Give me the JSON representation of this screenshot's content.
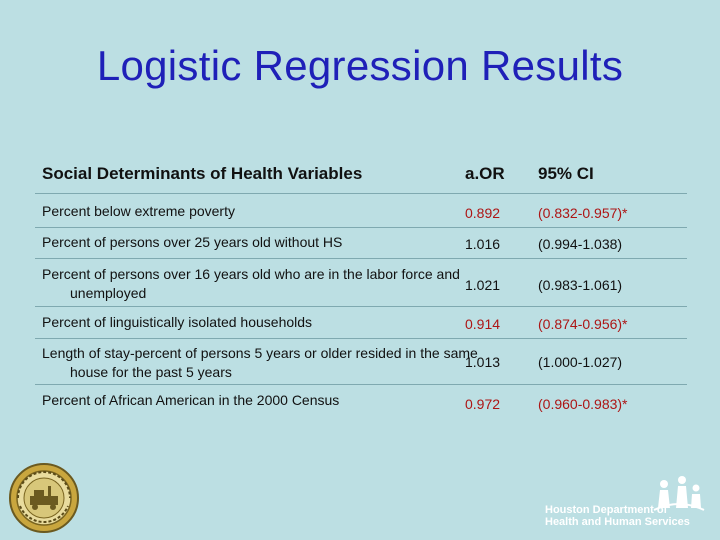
{
  "title": "Logistic Regression Results",
  "table": {
    "headers": {
      "variable": "Social Determinants of Health Variables",
      "aor": "a.OR",
      "ci": "95% CI"
    },
    "rows": [
      {
        "variable": "Percent below extreme poverty",
        "aor": "0.892",
        "ci": "(0.832-0.957)*",
        "significant": true
      },
      {
        "variable": "Percent of persons over 25 years old without HS",
        "aor": "1.016",
        "ci": "(0.994-1.038)",
        "significant": false
      },
      {
        "variable": "Percent of persons over 16 years old who are in the labor force and unemployed",
        "aor": "1.021",
        "ci": "(0.983-1.061)",
        "significant": false
      },
      {
        "variable": "Percent of linguistically isolated households",
        "aor": "0.914",
        "ci": "(0.874-0.956)*",
        "significant": true
      },
      {
        "variable": "Length of stay-percent of persons 5 years or older resided in the same house for the past 5 years",
        "aor": "1.013",
        "ci": "(1.000-1.027)",
        "significant": false
      },
      {
        "variable": "Percent of African American in the 2000 Census",
        "aor": "0.972",
        "ci": "(0.960-0.983)*",
        "significant": true
      }
    ]
  },
  "footer": {
    "seal_text": "CITY OF HOUSTON TEXAS",
    "dept_line1": "Houston Department of",
    "dept_line2": "Health and Human Services"
  },
  "colors": {
    "background": "#bcdfe3",
    "title": "#1f20b8",
    "significant": "#ad1515"
  }
}
